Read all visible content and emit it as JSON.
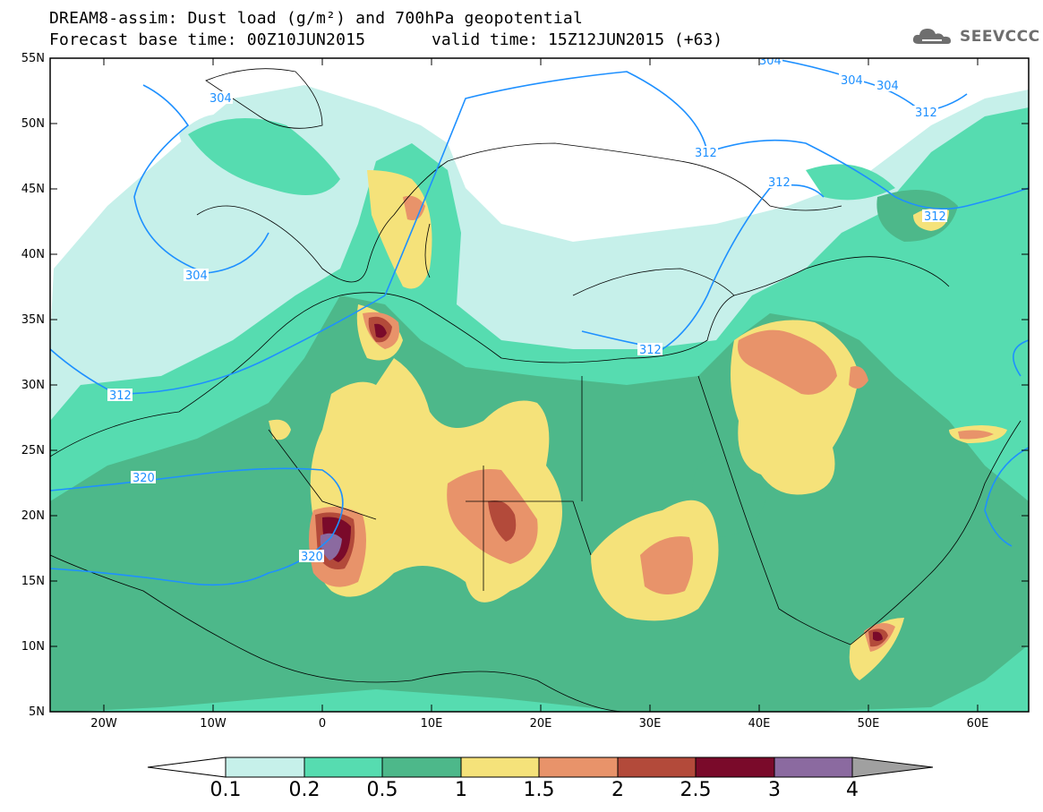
{
  "title": {
    "line1": "DREAM8-assim: Dust load (g/m²) and 700hPa geopotential",
    "base_time": "Forecast base time: 00Z10JUN2015",
    "valid_time": "valid time: 15Z12JUN2015 (+63)"
  },
  "brand": {
    "name": "SEEVCCC",
    "icon": "cloud-icon"
  },
  "axes": {
    "lat_labels": [
      "55N",
      "50N",
      "45N",
      "40N",
      "35N",
      "30N",
      "25N",
      "20N",
      "15N",
      "10N",
      "5N"
    ],
    "lon_labels": [
      "20W",
      "10W",
      "0",
      "10E",
      "20E",
      "30E",
      "40E",
      "50E",
      "60E"
    ]
  },
  "contours": {
    "color": "#1e90ff",
    "labels": [
      "304",
      "304",
      "304",
      "304",
      "304",
      "312",
      "312",
      "312",
      "312",
      "312",
      "312",
      "320",
      "320"
    ]
  },
  "colorbar": {
    "thresholds": [
      "0.1",
      "0.2",
      "0.5",
      "1",
      "1.5",
      "2",
      "2.5",
      "3",
      "4"
    ],
    "colors": [
      "#ffffff",
      "#c6f0ea",
      "#56dcb0",
      "#4db88a",
      "#f5e27a",
      "#e8936a",
      "#b34a3a",
      "#7a0a2a",
      "#8b6aa0",
      "#a0a0a0"
    ]
  }
}
